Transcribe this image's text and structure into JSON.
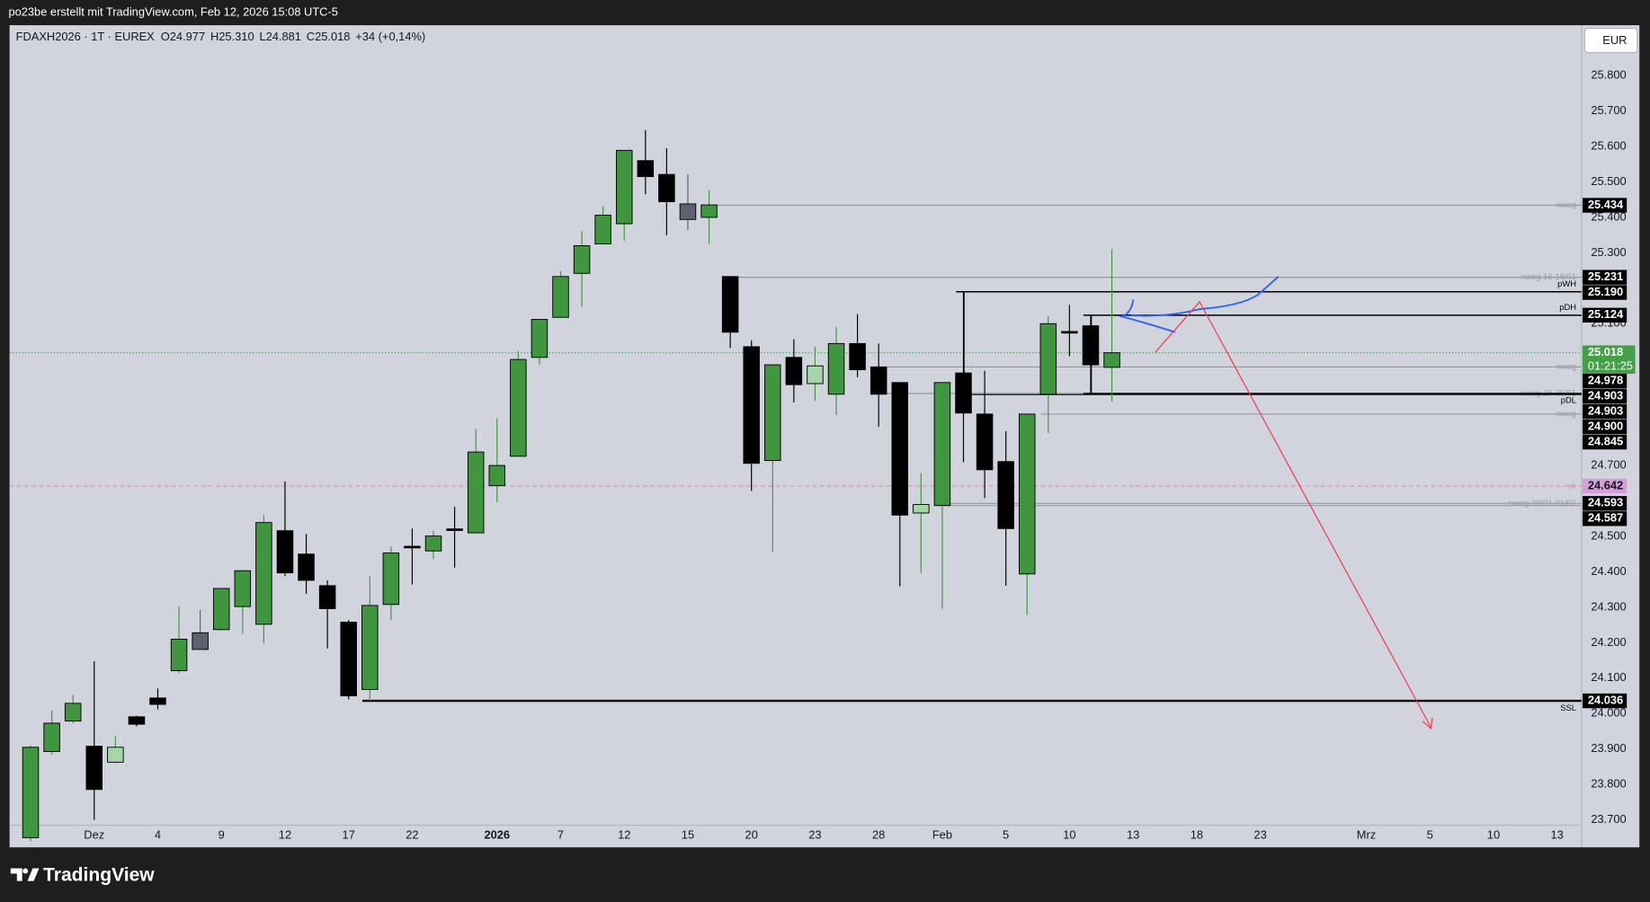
{
  "header": {
    "attribution": "po23be erstellt mit TradingView.com, Feb 12, 2026 15:08 UTC-5",
    "brand": "TradingView",
    "currency": "EUR"
  },
  "chart_data": {
    "type": "candlestick",
    "title": "FDAXH2026 · 1T · EUREX",
    "ohlc_legend": [
      "O24.977",
      "H25.310",
      "L24.881",
      "C25.018"
    ],
    "change": "+34 (+0,14%)",
    "categories": [
      null,
      null,
      null,
      "Dez",
      null,
      null,
      "4",
      null,
      null,
      "9",
      null,
      null,
      "12",
      null,
      null,
      "17",
      null,
      null,
      "22",
      null,
      null,
      null,
      "2026",
      null,
      null,
      "7",
      null,
      null,
      "12",
      null,
      null,
      "15",
      null,
      null,
      "20",
      null,
      null,
      "23",
      null,
      null,
      "28",
      null,
      null,
      "Feb",
      null,
      null,
      "5",
      null,
      null,
      "10",
      null,
      null,
      "13",
      null,
      null,
      "18",
      null,
      null,
      "23",
      null,
      null,
      null,
      null,
      "Mrz",
      null,
      null,
      "5",
      null,
      null,
      "10",
      null,
      null,
      "13"
    ],
    "open": [
      23650,
      23893,
      23979,
      23908,
      23863,
      23991,
      24044,
      24121,
      24181,
      24237,
      24302,
      24252,
      24516,
      24450,
      24361,
      24258,
      24068,
      24308,
      24472,
      24459,
      24517,
      24510,
      24643,
      24726,
      25005,
      25118,
      25242,
      25325,
      25382,
      25560,
      25521,
      25438,
      25400,
      25233,
      25035,
      24714,
      25005,
      24931,
      24901,
      25044,
      24978,
      24934,
      24566,
      24587,
      24961,
      24845,
      24711,
      24394,
      24901,
      25078,
      25094,
      24977,
      null,
      null,
      null,
      null,
      null,
      null,
      null,
      null,
      null,
      null,
      null,
      null,
      null,
      null,
      null,
      null,
      null,
      null,
      null,
      null,
      null
    ],
    "high": [
      23910,
      24009,
      24053,
      24148,
      23937,
      23994,
      24071,
      24302,
      24293,
      24353,
      24403,
      24560,
      24655,
      24507,
      24376,
      24264,
      24388,
      24471,
      24522,
      24516,
      24584,
      24803,
      24833,
      25023,
      25112,
      25248,
      25361,
      25432,
      25589,
      25646,
      25595,
      25521,
      25477,
      25233,
      25053,
      24984,
      25056,
      25035,
      25091,
      25127,
      25044,
      24934,
      24679,
      24934,
      25190,
      24967,
      24797,
      24845,
      25121,
      25153,
      25124,
      25310,
      null,
      null,
      null,
      null,
      null,
      null,
      null,
      null,
      null,
      null,
      null,
      null,
      null,
      null,
      null,
      null,
      null,
      null,
      null,
      null,
      null
    ],
    "low": [
      23640,
      23884,
      23973,
      23700,
      23860,
      23964,
      24012,
      24115,
      24181,
      24234,
      24225,
      24198,
      24388,
      24338,
      24184,
      24040,
      24036,
      24264,
      24364,
      24436,
      24412,
      24510,
      24596,
      24726,
      24984,
      25118,
      25147,
      25325,
      25334,
      25465,
      25349,
      25364,
      25325,
      25032,
      24628,
      24456,
      24878,
      24883,
      24842,
      24949,
      24809,
      24359,
      24397,
      24296,
      24709,
      24608,
      24361,
      24278,
      24792,
      25008,
      24903,
      24881,
      null,
      null,
      null,
      null,
      null,
      null,
      null,
      null,
      null,
      null,
      null,
      null,
      null,
      null,
      null,
      null,
      null,
      null,
      null,
      null,
      null
    ],
    "close": [
      23905,
      23973,
      24029,
      23786,
      23905,
      23970,
      24026,
      24210,
      24228,
      24353,
      24403,
      24539,
      24397,
      24376,
      24296,
      24050,
      24305,
      24453,
      24468,
      24501,
      24521,
      24738,
      24700,
      24999,
      25112,
      25233,
      25320,
      25406,
      25589,
      25515,
      25444,
      25394,
      25435,
      25076,
      24706,
      24984,
      24928,
      24981,
      25044,
      24970,
      24901,
      24560,
      24590,
      24934,
      24848,
      24688,
      24522,
      24845,
      25100,
      25074,
      24984,
      25018,
      null,
      null,
      null,
      null,
      null,
      null,
      null,
      null,
      null,
      null,
      null,
      null,
      null,
      null,
      null,
      null,
      null,
      null,
      null,
      null,
      null
    ],
    "colors": [
      "#40963f",
      "#40963f",
      "#40963f",
      "#000000",
      "#a5d6a7",
      "#000000",
      "#000000",
      "#40963f",
      "#5d6170",
      "#40963f",
      "#40963f",
      "#40963f",
      "#000000",
      "#000000",
      "#000000",
      "#000000",
      "#40963f",
      "#40963f",
      "#000000",
      "#40963f",
      "#000000",
      "#40963f",
      "#40963f",
      "#40963f",
      "#40963f",
      "#40963f",
      "#40963f",
      "#40963f",
      "#40963f",
      "#000000",
      "#000000",
      "#5d6170",
      "#40963f",
      "#000000",
      "#000000",
      "#40963f",
      "#000000",
      "#a5d6a7",
      "#40963f",
      "#000000",
      "#000000",
      "#000000",
      "#a5d6a7",
      "#40963f",
      "#000000",
      "#000000",
      "#000000",
      "#40963f",
      "#40963f",
      "#000000",
      "#000000",
      "#40963f",
      null,
      null,
      null,
      null,
      null,
      null,
      null,
      null,
      null,
      null,
      null,
      null,
      null,
      null,
      null,
      null,
      null,
      null,
      null,
      null,
      null
    ],
    "ylim": [
      23685,
      25942
    ],
    "yticks": [
      {
        "value": 25800,
        "label": "25.800"
      },
      {
        "value": 25700,
        "label": "25.700"
      },
      {
        "value": 25600,
        "label": "25.600"
      },
      {
        "value": 25500,
        "label": "25.500"
      },
      {
        "value": 25400,
        "label": "25.400"
      },
      {
        "value": 25300,
        "label": "25.300"
      },
      {
        "value": 25100,
        "label": "25.100"
      },
      {
        "value": 24700,
        "label": "24.700"
      },
      {
        "value": 24500,
        "label": "24.500"
      },
      {
        "value": 24400,
        "label": "24.400"
      },
      {
        "value": 24300,
        "label": "24.300"
      },
      {
        "value": 24200,
        "label": "24.200"
      },
      {
        "value": 24100,
        "label": "24.100"
      },
      {
        "value": 24000,
        "label": "24.000"
      },
      {
        "value": 23900,
        "label": "23.900"
      },
      {
        "value": 23800,
        "label": "23.800"
      },
      {
        "value": 23700,
        "label": "23.700"
      }
    ],
    "grid": false,
    "levels": [
      {
        "name": "nwog",
        "value": 25434,
        "label": "25.434",
        "color": "#9598a1",
        "box_color": "#000000"
      },
      {
        "name": "nwog 16-18/01",
        "value": 25231,
        "label": "25.231",
        "color": "#9598a1",
        "box_color": "#000000"
      },
      {
        "name": "pWH",
        "value": 25190,
        "label": "25.190",
        "color": "#000000",
        "box_color": "#000000"
      },
      {
        "name": "pDH",
        "value": 25124,
        "label": "25.124",
        "color": "#000000",
        "box_color": "#000000"
      },
      {
        "name": "nwog",
        "value": 24978,
        "label": "24.978",
        "color": "#9598a1",
        "box_color": "#000000"
      },
      {
        "name": "nwog 29-30/01",
        "value": 24903,
        "label": "24.903",
        "color": "#9598a1",
        "box_color": "#000000"
      },
      {
        "name": "pDL",
        "value": 24903,
        "label": "24.903",
        "color": "#000000",
        "box_color": "#000000"
      },
      {
        "value": 24900,
        "label": "24.900",
        "color": "#000000",
        "box_color": "#000000"
      },
      {
        "name": "nwog",
        "value": 24845,
        "label": "24.845",
        "color": "#9598a1",
        "box_color": "#000000"
      },
      {
        "name": "yo",
        "value": 24642,
        "label": "24.642",
        "color": "#e38fb7",
        "box_color": "#d59ed8"
      },
      {
        "name": "nwog 30/01-01/02",
        "value": 24593,
        "label": "24.593",
        "color": "#9598a1",
        "box_color": "#000000"
      },
      {
        "value": 24587,
        "label": "24.587",
        "color": "#9598a1",
        "box_color": "#000000"
      },
      {
        "name": "SSL",
        "value": 24036,
        "label": "24.036",
        "color": "#000000",
        "box_color": "#000000"
      }
    ],
    "last_price": {
      "value": 25018,
      "label": "25.018",
      "countdown": "01:21:25",
      "color": "#43a047"
    }
  }
}
